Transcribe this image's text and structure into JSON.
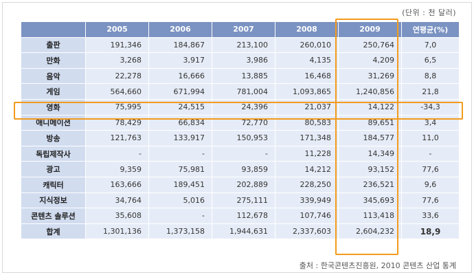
{
  "unit_note": "(단위 : 천 달러)",
  "source_note": "출처 : 한국콘텐츠진흥원, 2010 콘텐츠 산업 통계",
  "colors": {
    "header": "#7b93c2",
    "row_header": "#d1dcef",
    "cell": "#e6ecf7",
    "highlight": "#f39a1b"
  },
  "table": {
    "headers": [
      "",
      "2005",
      "2006",
      "2007",
      "2008",
      "2009",
      "연평균(%)"
    ],
    "rows": [
      {
        "label": "출판",
        "values": [
          "191,346",
          "184,867",
          "213,100",
          "260,010",
          "250,764",
          "7,0"
        ]
      },
      {
        "label": "만화",
        "values": [
          "3,268",
          "3,917",
          "3,986",
          "4,135",
          "4,209",
          "6,5"
        ]
      },
      {
        "label": "음악",
        "values": [
          "22,278",
          "16,666",
          "13,885",
          "16,468",
          "31,269",
          "8,8"
        ]
      },
      {
        "label": "게임",
        "values": [
          "564,660",
          "671,994",
          "781,004",
          "1,093,865",
          "1,240,856",
          "21,8"
        ]
      },
      {
        "label": "영화",
        "values": [
          "75,995",
          "24,515",
          "24,396",
          "21,037",
          "14,122",
          "-34,3"
        ]
      },
      {
        "label": "애니메이션",
        "values": [
          "78,429",
          "66,834",
          "72,770",
          "80,583",
          "89,651",
          "3,4"
        ]
      },
      {
        "label": "방송",
        "values": [
          "121,763",
          "133,917",
          "150,953",
          "171,348",
          "184,577",
          "11,0"
        ]
      },
      {
        "label": "독립제작사",
        "values": [
          "-",
          "-",
          "-",
          "11,228",
          "14,349",
          "-"
        ]
      },
      {
        "label": "광고",
        "values": [
          "9,359",
          "75,981",
          "93,859",
          "14,212",
          "93,152",
          "77,6"
        ]
      },
      {
        "label": "캐릭터",
        "values": [
          "163,666",
          "189,451",
          "202,889",
          "228,250",
          "236,521",
          "9,6"
        ]
      },
      {
        "label": "지식정보",
        "values": [
          "34,764",
          "5,016",
          "275,111",
          "339,949",
          "345,693",
          "77,6"
        ]
      },
      {
        "label": "콘텐츠 솔루션",
        "values": [
          "35,608",
          "-",
          "112,678",
          "107,746",
          "113,418",
          "33,6"
        ]
      },
      {
        "label": "합계",
        "values": [
          "1,301,136",
          "1,373,158",
          "1,944,631",
          "2,337,603",
          "2,604,232",
          "18,9"
        ]
      }
    ]
  }
}
